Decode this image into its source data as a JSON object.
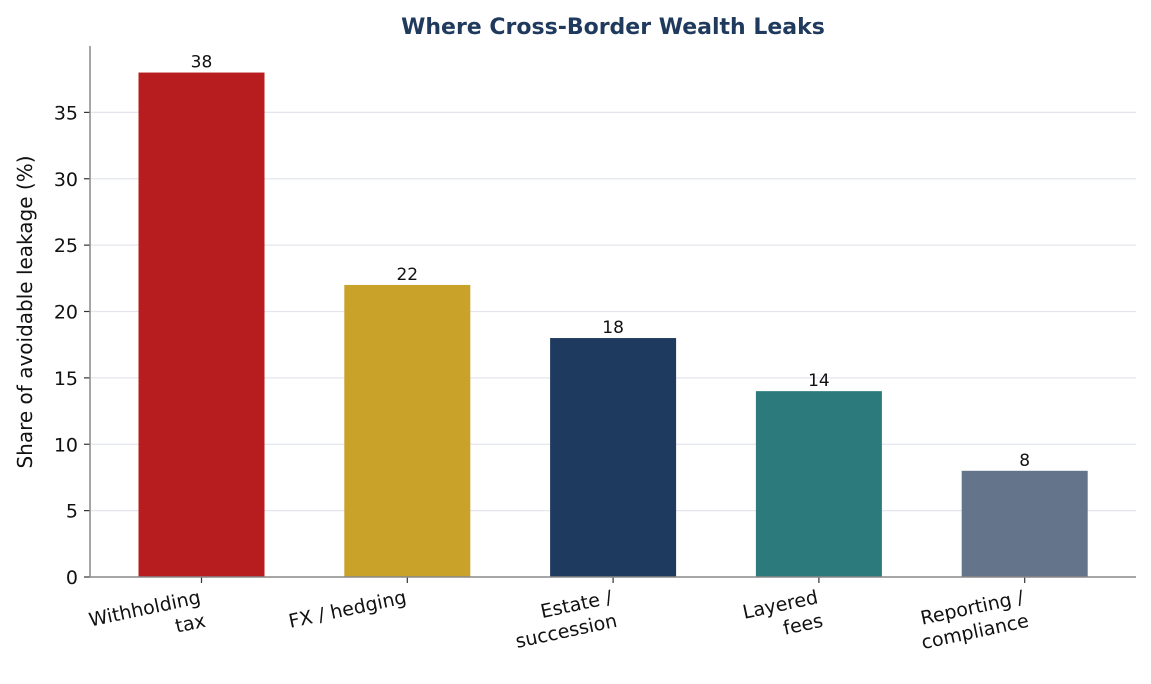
{
  "chart_data": {
    "type": "bar",
    "title": "Where Cross-Border Wealth Leaks",
    "xlabel": "",
    "ylabel": "Share of avoidable leakage (%)",
    "categories": [
      [
        "Withholding",
        "tax"
      ],
      [
        "FX / hedging"
      ],
      [
        "Estate /",
        "succession"
      ],
      [
        "Layered",
        "fees"
      ],
      [
        "Reporting /",
        "compliance"
      ]
    ],
    "values": [
      38,
      22,
      18,
      14,
      8
    ],
    "value_labels": [
      "38",
      "22",
      "18",
      "14",
      "8"
    ],
    "colors": [
      "#b71c1e",
      "#c9a22a",
      "#1f3a5f",
      "#2c7a7b",
      "#64748b"
    ],
    "ylim": [
      0,
      40
    ],
    "yticks": [
      0,
      5,
      10,
      15,
      20,
      25,
      30,
      35
    ],
    "grid": true,
    "legend": "none"
  }
}
